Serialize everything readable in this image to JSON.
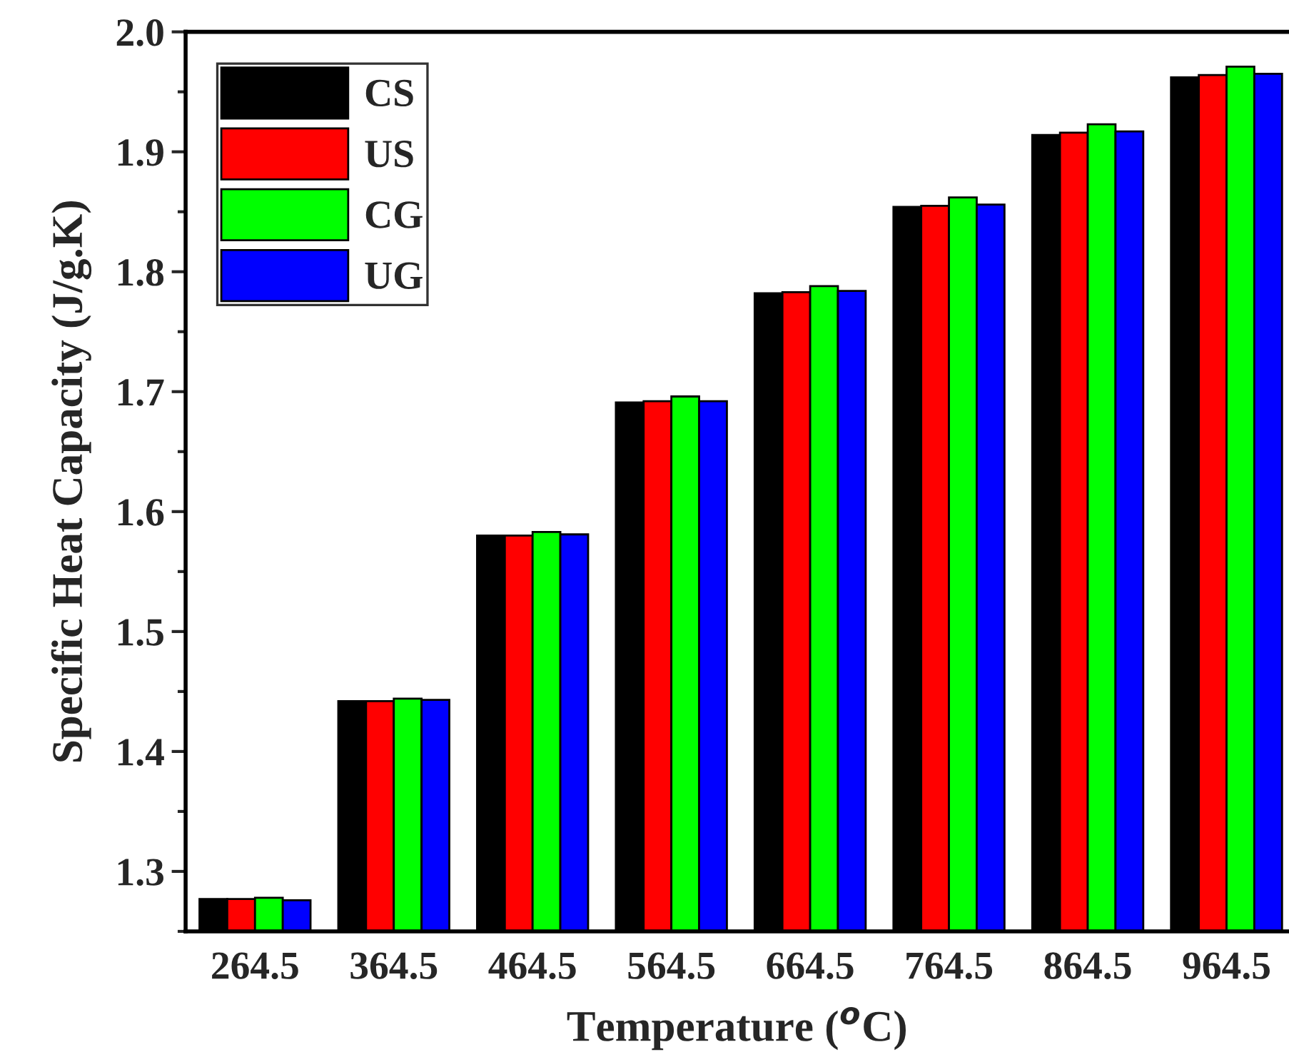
{
  "chart_data": {
    "type": "bar",
    "xlabel": "Temperature ($^{o}$C)",
    "ylabel": "Specific Heat Capacity (J/g.K)",
    "categories": [
      "264.5",
      "364.5",
      "464.5",
      "564.5",
      "664.5",
      "764.5",
      "864.5",
      "964.5"
    ],
    "series": [
      {
        "name": "CS",
        "color": "#000000",
        "values": [
          1.277,
          1.442,
          1.58,
          1.691,
          1.782,
          1.854,
          1.914,
          1.962
        ]
      },
      {
        "name": "US",
        "color": "#ff0000",
        "values": [
          1.277,
          1.442,
          1.58,
          1.692,
          1.783,
          1.855,
          1.916,
          1.964
        ]
      },
      {
        "name": "CG",
        "color": "#00ff00",
        "values": [
          1.278,
          1.444,
          1.583,
          1.696,
          1.788,
          1.862,
          1.923,
          1.971
        ]
      },
      {
        "name": "UG",
        "color": "#0000ff",
        "values": [
          1.276,
          1.443,
          1.581,
          1.692,
          1.784,
          1.856,
          1.917,
          1.965
        ]
      }
    ],
    "ylim": [
      1.25,
      2.0
    ],
    "yticks": [
      1.3,
      1.4,
      1.5,
      1.6,
      1.7,
      1.8,
      1.9,
      {
        "value": 2,
        "label": "2.0"
      }
    ],
    "grid": false,
    "legend": "top left"
  }
}
